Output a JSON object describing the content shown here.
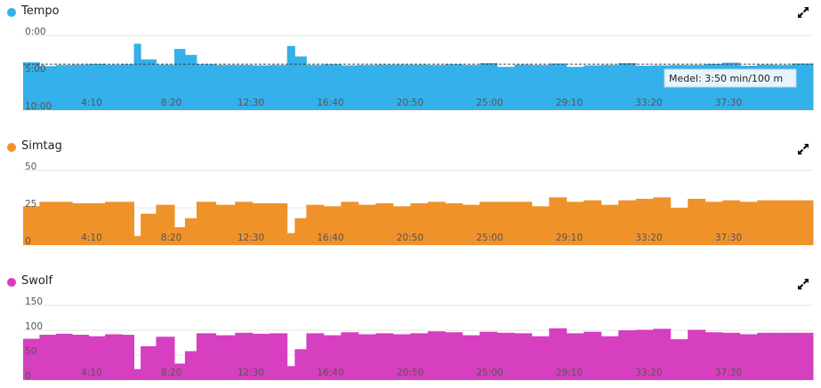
{
  "icons": {
    "expand": "expand-arrows-icon"
  },
  "x_tick_labels": [
    "4:10",
    "8:20",
    "12:30",
    "16:40",
    "20:50",
    "25:00",
    "29:10",
    "33:20",
    "37:30"
  ],
  "chart_data": [
    {
      "type": "bar",
      "name": "Tempo",
      "title": "Tempo",
      "color": "#34b0ea",
      "inverted_y": true,
      "ylim": [
        0,
        10
      ],
      "y_tick_labels": [
        "0:00",
        "5:00",
        "10:00"
      ],
      "x_tick_labels": [
        "4:10",
        "8:20",
        "12:30",
        "16:40",
        "20:50",
        "25:00",
        "29:10",
        "33:20",
        "37:30"
      ],
      "xlim": [
        0,
        41
      ],
      "x": [
        0.0,
        0.85,
        1.7,
        2.55,
        3.4,
        4.25,
        5.1,
        5.75,
        6.1,
        6.9,
        7.85,
        8.4,
        9.0,
        10.0,
        11.0,
        11.9,
        12.8,
        13.7,
        14.1,
        14.7,
        15.6,
        16.5,
        17.4,
        18.3,
        19.2,
        20.1,
        21.0,
        21.9,
        22.8,
        23.7,
        24.6,
        25.5,
        26.4,
        27.3,
        28.2,
        29.1,
        30.0,
        30.9,
        31.8,
        32.7,
        33.6,
        34.5,
        35.4,
        36.3,
        37.2,
        38.1,
        39.0,
        39.9
      ],
      "widths": [
        0.85,
        0.85,
        0.85,
        0.85,
        0.85,
        0.85,
        0.65,
        0.35,
        0.8,
        0.95,
        0.55,
        0.6,
        1.0,
        1.0,
        0.9,
        0.9,
        0.9,
        0.4,
        0.6,
        0.9,
        0.9,
        0.9,
        0.9,
        0.9,
        0.9,
        0.9,
        0.9,
        0.9,
        0.9,
        0.9,
        0.9,
        0.9,
        0.9,
        0.9,
        0.9,
        0.9,
        0.9,
        0.9,
        0.9,
        0.9,
        0.9,
        0.9,
        0.9,
        0.9,
        0.9,
        0.9,
        0.9,
        1.1
      ],
      "values": [
        3.6,
        4.1,
        3.95,
        3.9,
        3.8,
        3.9,
        3.85,
        1.1,
        3.2,
        3.9,
        1.8,
        2.6,
        3.85,
        3.95,
        3.95,
        4.0,
        3.95,
        1.4,
        2.8,
        3.95,
        3.85,
        4.0,
        3.95,
        3.9,
        3.9,
        3.9,
        3.95,
        3.85,
        3.95,
        3.7,
        4.2,
        3.9,
        3.95,
        3.75,
        4.2,
        4.0,
        3.95,
        3.7,
        4.05,
        4.0,
        3.95,
        3.95,
        3.8,
        3.65,
        4.05,
        3.9,
        3.95,
        3.75
      ],
      "reference_line": 3.8333,
      "tooltip": "Medel: 3:50 min/100 m"
    },
    {
      "type": "bar",
      "name": "Simtag",
      "title": "Simtag",
      "color": "#f0922a",
      "ylim": [
        0,
        50
      ],
      "y_tick_labels": [
        "0",
        "25",
        "50"
      ],
      "x_tick_labels": [
        "4:10",
        "8:20",
        "12:30",
        "16:40",
        "20:50",
        "25:00",
        "29:10",
        "33:20",
        "37:30"
      ],
      "xlim": [
        0,
        41
      ],
      "x": [
        0.0,
        0.85,
        1.7,
        2.55,
        3.4,
        4.25,
        5.1,
        5.75,
        6.1,
        6.9,
        7.85,
        8.4,
        9.0,
        10.0,
        11.0,
        11.9,
        12.8,
        13.7,
        14.1,
        14.7,
        15.6,
        16.5,
        17.4,
        18.3,
        19.2,
        20.1,
        21.0,
        21.9,
        22.8,
        23.7,
        24.6,
        25.5,
        26.4,
        27.3,
        28.2,
        29.1,
        30.0,
        30.9,
        31.8,
        32.7,
        33.6,
        34.5,
        35.4,
        36.3,
        37.2,
        38.1,
        39.0,
        39.9
      ],
      "widths": [
        0.85,
        0.85,
        0.85,
        0.85,
        0.85,
        0.85,
        0.65,
        0.35,
        0.8,
        0.95,
        0.55,
        0.6,
        1.0,
        1.0,
        0.9,
        0.9,
        0.9,
        0.4,
        0.6,
        0.9,
        0.9,
        0.9,
        0.9,
        0.9,
        0.9,
        0.9,
        0.9,
        0.9,
        0.9,
        0.9,
        0.9,
        0.9,
        0.9,
        0.9,
        0.9,
        0.9,
        0.9,
        0.9,
        0.9,
        0.9,
        0.9,
        0.9,
        0.9,
        0.9,
        0.9,
        0.9,
        0.9,
        1.1
      ],
      "values": [
        26,
        29,
        29,
        28,
        28,
        29,
        29,
        6,
        21,
        27,
        12,
        18,
        29,
        27,
        29,
        28,
        28,
        8,
        18,
        27,
        26,
        29,
        27,
        28,
        26,
        28,
        29,
        28,
        27,
        29,
        29,
        29,
        26,
        32,
        29,
        30,
        27,
        30,
        31,
        32,
        25,
        31,
        29,
        30,
        29,
        30,
        30,
        30
      ]
    },
    {
      "type": "bar",
      "name": "Swolf",
      "title": "Swolf",
      "color": "#d63fbf",
      "ylim": [
        0,
        150
      ],
      "y_tick_labels": [
        "0",
        "50",
        "100",
        "150"
      ],
      "x_tick_labels": [
        "4:10",
        "8:20",
        "12:30",
        "16:40",
        "20:50",
        "25:00",
        "29:10",
        "33:20",
        "37:30"
      ],
      "xlim": [
        0,
        41
      ],
      "x": [
        0.0,
        0.85,
        1.7,
        2.55,
        3.4,
        4.25,
        5.1,
        5.75,
        6.1,
        6.9,
        7.85,
        8.4,
        9.0,
        10.0,
        11.0,
        11.9,
        12.8,
        13.7,
        14.1,
        14.7,
        15.6,
        16.5,
        17.4,
        18.3,
        19.2,
        20.1,
        21.0,
        21.9,
        22.8,
        23.7,
        24.6,
        25.5,
        26.4,
        27.3,
        28.2,
        29.1,
        30.0,
        30.9,
        31.8,
        32.7,
        33.6,
        34.5,
        35.4,
        36.3,
        37.2,
        38.1,
        39.0,
        39.9
      ],
      "widths": [
        0.85,
        0.85,
        0.85,
        0.85,
        0.85,
        0.85,
        0.65,
        0.35,
        0.8,
        0.95,
        0.55,
        0.6,
        1.0,
        1.0,
        0.9,
        0.9,
        0.9,
        0.4,
        0.6,
        0.9,
        0.9,
        0.9,
        0.9,
        0.9,
        0.9,
        0.9,
        0.9,
        0.9,
        0.9,
        0.9,
        0.9,
        0.9,
        0.9,
        0.9,
        0.9,
        0.9,
        0.9,
        0.9,
        0.9,
        0.9,
        0.9,
        0.9,
        0.9,
        0.9,
        0.9,
        0.9,
        0.9,
        1.1
      ],
      "values": [
        83,
        91,
        93,
        91,
        88,
        92,
        91,
        22,
        68,
        87,
        33,
        58,
        94,
        90,
        95,
        93,
        94,
        28,
        62,
        94,
        90,
        96,
        92,
        94,
        92,
        94,
        98,
        96,
        90,
        97,
        95,
        94,
        88,
        104,
        94,
        97,
        88,
        100,
        101,
        103,
        82,
        101,
        96,
        95,
        92,
        95,
        95,
        95
      ]
    }
  ]
}
